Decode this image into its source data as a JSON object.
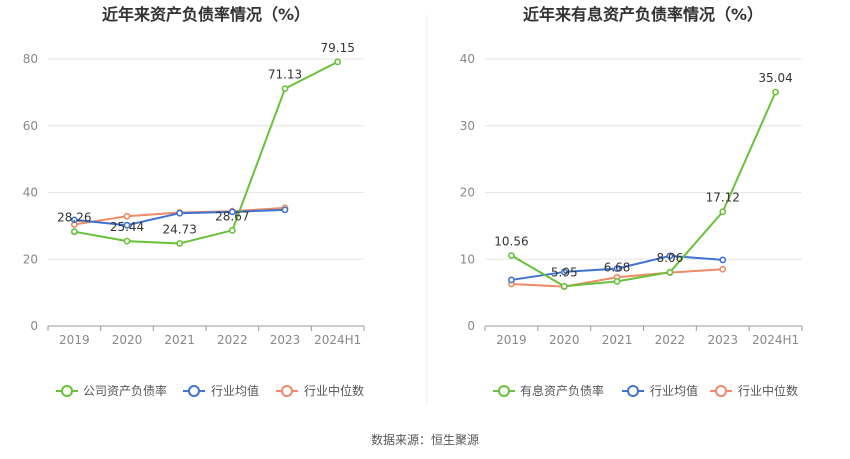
{
  "footer": "数据来源：恒生聚源",
  "colors": {
    "company": "#67c23a",
    "industry_avg": "#3f73cf",
    "industry_median": "#ee8a67",
    "axis_text": "#888888",
    "title": "#333333",
    "grid": "#e6e6e6"
  },
  "chart_data": [
    {
      "type": "line",
      "title": "近年来资产负债率情况（%）",
      "categories": [
        "2019",
        "2020",
        "2021",
        "2022",
        "2023",
        "2024H1"
      ],
      "ylim": [
        0,
        80
      ],
      "yticks": [
        0,
        20,
        40,
        60,
        80
      ],
      "grid": true,
      "legend_position": "bottom",
      "series": [
        {
          "name": "公司资产负债率",
          "values": [
            28.26,
            25.44,
            24.73,
            28.67,
            71.13,
            79.15
          ],
          "labels": [
            "28.26",
            "25.44",
            "24.73",
            "28.67",
            "71.13",
            "79.15"
          ]
        },
        {
          "name": "行业均值",
          "values": [
            31.8,
            30.2,
            33.8,
            34.2,
            34.8,
            null
          ]
        },
        {
          "name": "行业中位数",
          "values": [
            30.4,
            32.9,
            34.0,
            34.4,
            35.4,
            null
          ]
        }
      ]
    },
    {
      "type": "line",
      "title": "近年来有息资产负债率情况（%）",
      "categories": [
        "2019",
        "2020",
        "2021",
        "2022",
        "2023",
        "2024H1"
      ],
      "ylim": [
        0,
        40
      ],
      "yticks": [
        0,
        10,
        20,
        30,
        40
      ],
      "grid": true,
      "legend_position": "bottom",
      "series": [
        {
          "name": "有息资产负债率",
          "values": [
            10.56,
            5.95,
            6.68,
            8.06,
            17.12,
            35.04
          ],
          "labels": [
            "10.56",
            "5.95",
            "6.68",
            "8.06",
            "17.12",
            "35.04"
          ]
        },
        {
          "name": "行业均值",
          "values": [
            6.9,
            8.1,
            8.6,
            10.5,
            9.9,
            null
          ]
        },
        {
          "name": "行业中位数",
          "values": [
            6.3,
            5.9,
            7.3,
            8.0,
            8.5,
            null
          ]
        }
      ]
    }
  ]
}
